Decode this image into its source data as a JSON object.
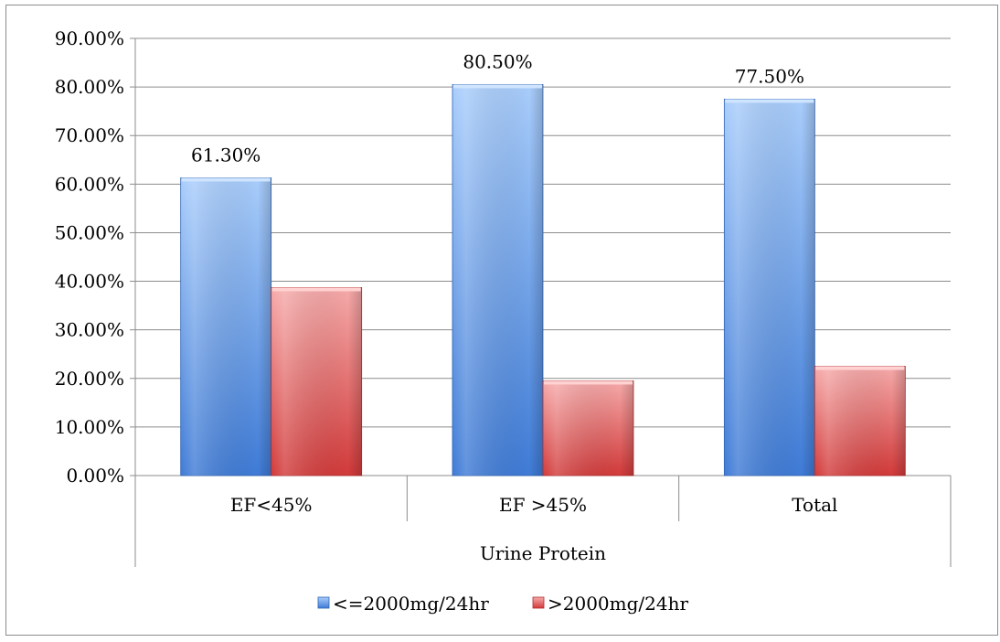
{
  "chart_data": {
    "type": "bar",
    "categories": [
      "EF<45%",
      "EF >45%",
      "Total"
    ],
    "xlabel": "Urine Protein",
    "ylabel": "",
    "ylim": [
      0,
      90
    ],
    "yticks": [
      "0.00%",
      "10.00%",
      "20.00%",
      "30.00%",
      "40.00%",
      "50.00%",
      "60.00%",
      "70.00%",
      "80.00%",
      "90.00%"
    ],
    "grid": true,
    "legend_position": "bottom",
    "series": [
      {
        "name": "<=2000mg/24hr",
        "values": [
          61.3,
          80.5,
          77.5
        ],
        "data_labels": [
          "61.30%",
          "80.50%",
          "77.50%"
        ],
        "color": "#5b8fe0"
      },
      {
        "name": ">2000mg/24hr",
        "values": [
          38.7,
          19.5,
          22.5
        ],
        "data_labels": [
          "",
          "",
          ""
        ],
        "color": "#e05757"
      }
    ]
  }
}
